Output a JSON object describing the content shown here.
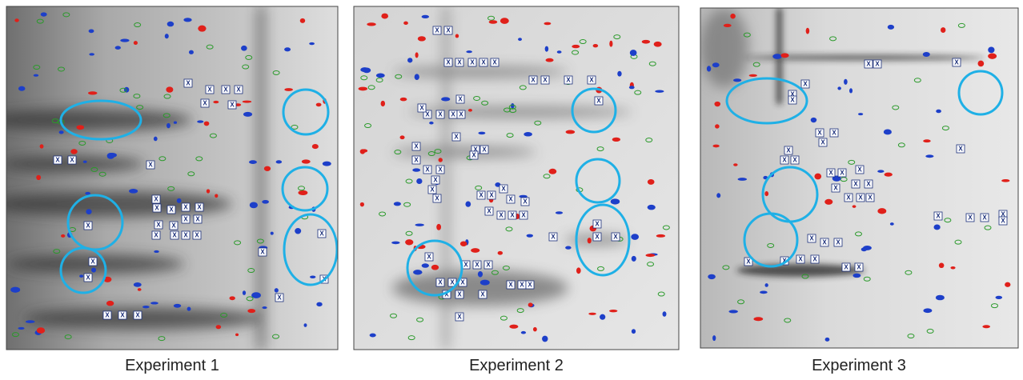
{
  "panels": [
    {
      "caption": "Experiment 1"
    },
    {
      "caption": "Experiment 2"
    },
    {
      "caption": "Experiment 3"
    }
  ],
  "marker_label": "X"
}
